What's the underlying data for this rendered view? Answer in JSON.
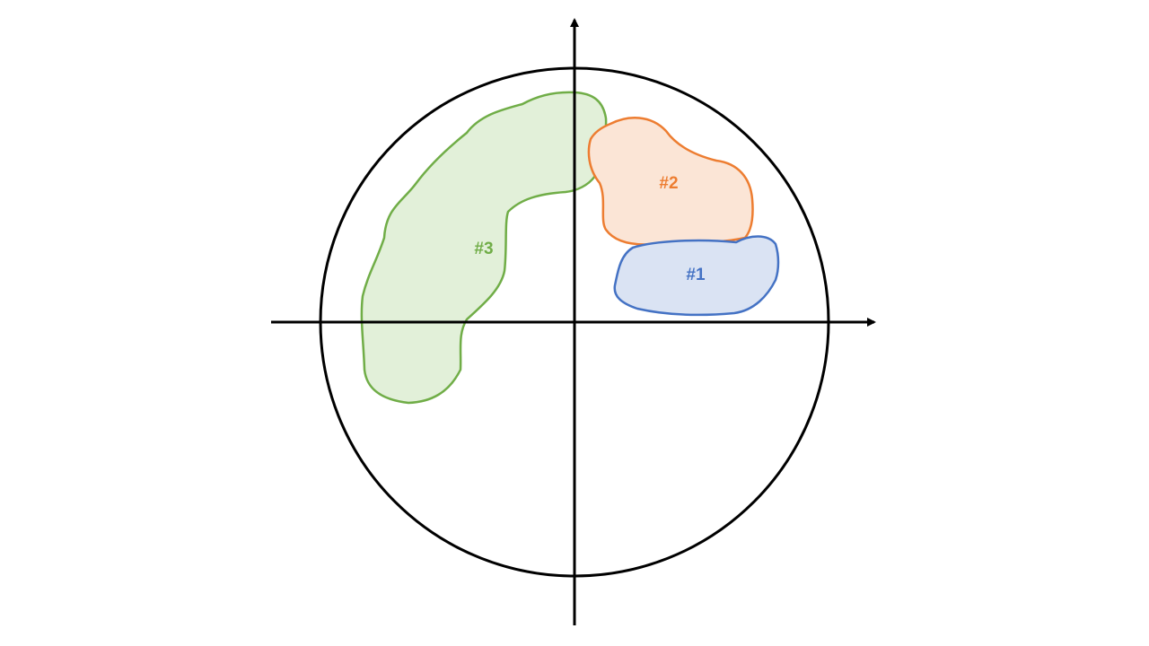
{
  "diagram": {
    "axes": {
      "color": "#000000"
    },
    "circle": {
      "color": "#000000"
    },
    "regions": [
      {
        "label": "#1",
        "stroke": "#4472C4",
        "fill": "#DAE3F3"
      },
      {
        "label": "#2",
        "stroke": "#ED7D31",
        "fill": "#FBE5D6"
      },
      {
        "label": "#3",
        "stroke": "#70AD47",
        "fill": "#E2F0D9"
      }
    ]
  }
}
